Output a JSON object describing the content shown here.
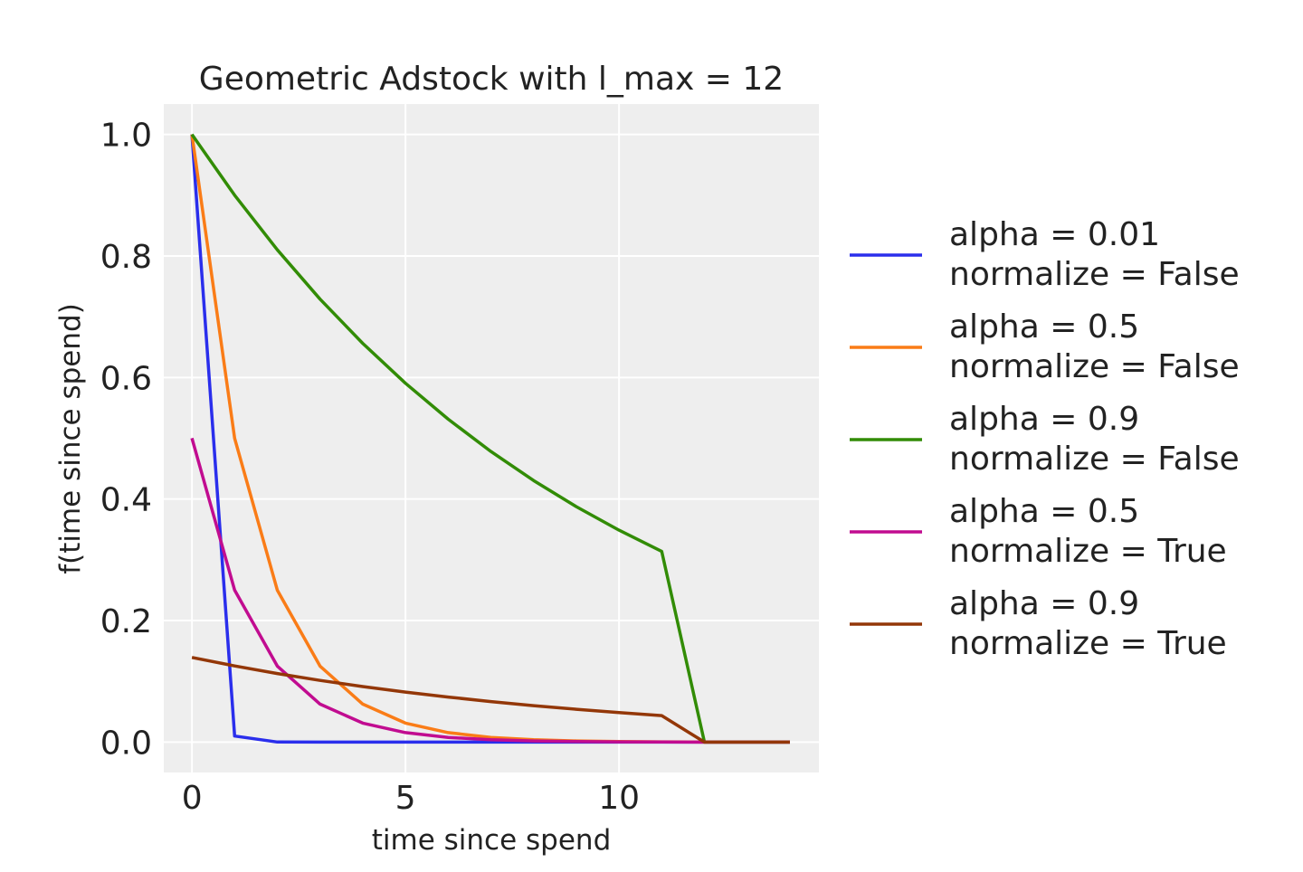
{
  "chart_data": {
    "type": "line",
    "title": "Geometric Adstock with l_max = 12",
    "xlabel": "time since spend",
    "ylabel": "f(time since spend)",
    "xlim": [
      -0.66,
      14.68
    ],
    "ylim": [
      -0.05,
      1.05
    ],
    "xticks": [
      0,
      5,
      10
    ],
    "yticks": [
      0.0,
      0.2,
      0.4,
      0.6,
      0.8,
      1.0
    ],
    "xtick_labels": [
      "0",
      "5",
      "10"
    ],
    "ytick_labels": [
      "0.0",
      "0.2",
      "0.4",
      "0.6",
      "0.8",
      "1.0"
    ],
    "grid": true,
    "background": "#eeeeee",
    "legend_placement": "right-outside",
    "x": [
      0,
      1,
      2,
      3,
      4,
      5,
      6,
      7,
      8,
      9,
      10,
      11,
      12,
      13,
      14
    ],
    "series": [
      {
        "name": "alpha = 0.01\nnormalize = False",
        "color": "#2a2eec",
        "values": [
          1,
          0.01,
          0.0001,
          0,
          0,
          0,
          0,
          0,
          0,
          0,
          0,
          0,
          0,
          0,
          0
        ]
      },
      {
        "name": "alpha = 0.5\nnormalize = False",
        "color": "#fa7c17",
        "values": [
          1,
          0.5,
          0.25,
          0.125,
          0.0625,
          0.03125,
          0.0156,
          0.0078,
          0.0039,
          0.002,
          0.001,
          0.0005,
          0,
          0,
          0
        ]
      },
      {
        "name": "alpha = 0.9\nnormalize = False",
        "color": "#328c06",
        "values": [
          1,
          0.9,
          0.81,
          0.729,
          0.6561,
          0.5905,
          0.5314,
          0.4783,
          0.4305,
          0.3874,
          0.3487,
          0.3138,
          0,
          0,
          0
        ]
      },
      {
        "name": "alpha = 0.5\nnormalize = True",
        "color": "#c10c90",
        "values": [
          0.5001,
          0.2501,
          0.125,
          0.0625,
          0.0313,
          0.0156,
          0.0078,
          0.0039,
          0.002,
          0.001,
          0.0005,
          0.0002,
          0,
          0,
          0
        ]
      },
      {
        "name": "alpha = 0.9\nnormalize = True",
        "color": "#933708",
        "values": [
          0.1394,
          0.1254,
          0.1129,
          0.1016,
          0.0914,
          0.0823,
          0.0741,
          0.0667,
          0.06,
          0.054,
          0.0486,
          0.0437,
          0,
          0,
          0
        ]
      }
    ]
  }
}
